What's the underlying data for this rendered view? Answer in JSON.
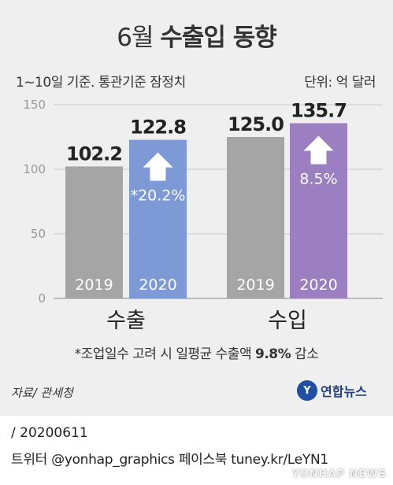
{
  "header": {
    "title_light": "6월",
    "title_bold": "수출입 동향",
    "subtitle_left": "1~10일 기준. 통관기준 잠정치",
    "subtitle_right": "단위: 억 달러"
  },
  "chart_data": {
    "type": "bar",
    "ylim": [
      0,
      150
    ],
    "yticks": [
      0,
      50,
      100,
      150
    ],
    "grid": true,
    "groups": [
      {
        "label": "수출",
        "bars": [
          {
            "year": "2019",
            "value": 102.2,
            "value_label": "102.2",
            "color": "#a5a5a5"
          },
          {
            "year": "2020",
            "value": 122.8,
            "value_label": "122.8",
            "color": "#7e9ad6",
            "change_label": "*20.2%"
          }
        ]
      },
      {
        "label": "수입",
        "bars": [
          {
            "year": "2019",
            "value": 125.0,
            "value_label": "125.0",
            "color": "#a5a5a5"
          },
          {
            "year": "2020",
            "value": 135.7,
            "value_label": "135.7",
            "color": "#9b7fc0",
            "change_label": "8.5%"
          }
        ]
      }
    ]
  },
  "footnote": {
    "text_before": "*조업일수 고려 시 일평균 수출액 ",
    "highlight": "9.8%",
    "text_after": " 감소"
  },
  "source": "자료/ 관세청",
  "logo": {
    "mark": "Y",
    "name": "연합뉴스"
  },
  "credits": {
    "date_line": " / 20200611",
    "social_line": "트위터 @yonhap_graphics  페이스북 tuney.kr/LeYN1"
  },
  "watermark": "YONHAP NEWS"
}
